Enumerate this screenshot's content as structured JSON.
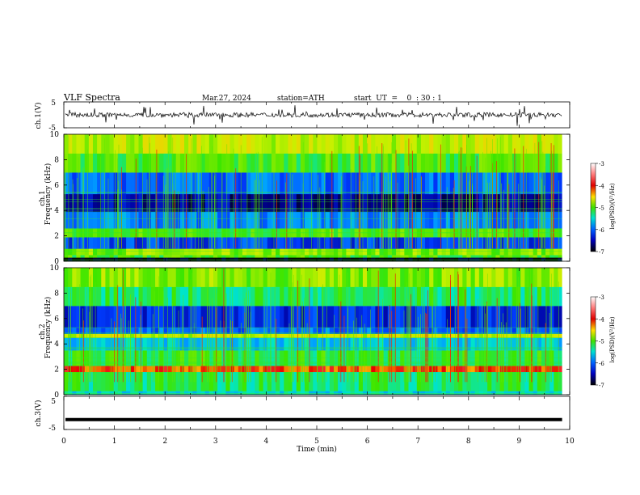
{
  "header": {
    "title": "VLF  Spectra",
    "date": "Mar.27, 2024",
    "station": "station=ATH",
    "start": "start  UT  =    0  : 30 : 1"
  },
  "chart_data": [
    {
      "type": "line",
      "name": "ch1-waveform",
      "ylabel": "ch.1(V)",
      "ylim": [
        -5,
        5
      ],
      "yticks": [
        -5,
        5
      ],
      "xlim": [
        0,
        10
      ],
      "trace": "noisy signal centred near 0 V with spikes",
      "signal_level_v": 0
    },
    {
      "type": "heatmap",
      "name": "ch1-spectrogram",
      "ylabel": "ch.1\nFrequency  (kHz)",
      "ylim": [
        0,
        10
      ],
      "yticks": [
        0,
        2,
        4,
        6,
        8,
        10
      ],
      "xlim": [
        0,
        9.85
      ],
      "colorbar": {
        "label": "log(PSD)(V²/Hz)",
        "ticks": [
          -3,
          -4,
          -5,
          -6,
          -7
        ],
        "range": [
          -7,
          -3
        ]
      },
      "bands": [
        {
          "f": [
            0,
            0.3
          ],
          "level": -7
        },
        {
          "f": [
            0.3,
            0.5
          ],
          "level": -5
        },
        {
          "f": [
            0.5,
            1.0
          ],
          "level": -4.8
        },
        {
          "f": [
            1.0,
            1.9
          ],
          "level": -6.2
        },
        {
          "f": [
            1.9,
            2.6
          ],
          "level": -5.0
        },
        {
          "f": [
            2.6,
            3.9
          ],
          "level": -5.9
        },
        {
          "f": [
            3.9,
            5.3
          ],
          "level": -6.6
        },
        {
          "f": [
            5.3,
            7.0
          ],
          "level": -6.0
        },
        {
          "f": [
            7.0,
            8.5
          ],
          "level": -5.0
        },
        {
          "f": [
            8.5,
            10
          ],
          "level": -4.6
        }
      ]
    },
    {
      "type": "heatmap",
      "name": "ch2-spectrogram",
      "ylabel": "ch.2\nFrequency  (kHz)",
      "ylim": [
        0,
        10
      ],
      "yticks": [
        0,
        2,
        4,
        6,
        8,
        10
      ],
      "xlim": [
        0,
        9.85
      ],
      "colorbar": {
        "label": "log(PSD)(V²/Hz)",
        "ticks": [
          -3,
          -4,
          -5,
          -6,
          -7
        ],
        "range": [
          -7,
          -3
        ]
      },
      "bands": [
        {
          "f": [
            0,
            0.3
          ],
          "level": -5.5
        },
        {
          "f": [
            0.3,
            1.8
          ],
          "level": -5.2
        },
        {
          "f": [
            1.8,
            2.3
          ],
          "level": -3.9
        },
        {
          "f": [
            2.3,
            3.5
          ],
          "level": -5.1
        },
        {
          "f": [
            3.5,
            4.5
          ],
          "level": -5.6
        },
        {
          "f": [
            4.5,
            4.8
          ],
          "level": -4.6
        },
        {
          "f": [
            4.8,
            5.3
          ],
          "level": -6.0
        },
        {
          "f": [
            5.3,
            7.0
          ],
          "level": -6.3
        },
        {
          "f": [
            7.0,
            8.5
          ],
          "level": -5.2
        },
        {
          "f": [
            8.5,
            10
          ],
          "level": -4.8
        }
      ]
    },
    {
      "type": "line",
      "name": "ch3-waveform",
      "ylabel": "ch.3(V)",
      "ylim": [
        -5,
        5
      ],
      "yticks": [
        -5,
        5
      ],
      "xlim": [
        0,
        9.85
      ],
      "xlabel": "Time  (min)",
      "xticks": [
        0,
        1,
        2,
        3,
        4,
        5,
        6,
        7,
        8,
        9,
        10
      ],
      "signal_level_v": -2
    }
  ]
}
